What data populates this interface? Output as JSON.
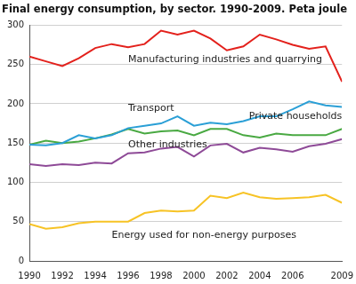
{
  "chart_data": {
    "type": "line",
    "title": "Final energy consumption, by sector. 1990-2009. Peta joule",
    "categories": [
      "1990",
      null,
      "1992",
      null,
      "1994",
      null,
      "1996",
      null,
      "1998",
      null,
      "2000",
      null,
      "2002",
      null,
      "2004",
      null,
      "2006",
      null,
      null,
      "2009"
    ],
    "series": [
      {
        "name": "Manufacturing industries and quarrying",
        "color": "#e3211c",
        "values": [
          260,
          254,
          248,
          258,
          271,
          276,
          272,
          276,
          293,
          288,
          293,
          283,
          268,
          273,
          288,
          282,
          275,
          270,
          273,
          228
        ]
      },
      {
        "name": "Transport",
        "color": "#2a9fd6",
        "values": [
          148,
          147,
          150,
          160,
          156,
          160,
          169,
          172,
          175,
          184,
          172,
          176,
          174,
          178,
          184,
          184,
          193,
          203,
          198,
          196
        ]
      },
      {
        "name": "Private households",
        "color": "#49a942",
        "values": [
          148,
          153,
          150,
          152,
          156,
          161,
          168,
          162,
          165,
          166,
          160,
          168,
          168,
          160,
          157,
          162,
          160,
          160,
          160,
          168
        ]
      },
      {
        "name": "Other industries",
        "color": "#8e4a97",
        "values": [
          123,
          121,
          123,
          122,
          125,
          124,
          137,
          138,
          143,
          145,
          133,
          147,
          149,
          138,
          144,
          142,
          139,
          146,
          149,
          155
        ]
      },
      {
        "name": "Energy used for non-energy purposes",
        "color": "#f7c325",
        "values": [
          47,
          41,
          43,
          48,
          50,
          50,
          50,
          61,
          64,
          63,
          64,
          83,
          80,
          87,
          81,
          79,
          80,
          81,
          84,
          74
        ]
      }
    ],
    "ylim": [
      0,
      300
    ],
    "yticks": [
      0,
      50,
      100,
      150,
      200,
      250,
      300
    ],
    "grid": true
  }
}
